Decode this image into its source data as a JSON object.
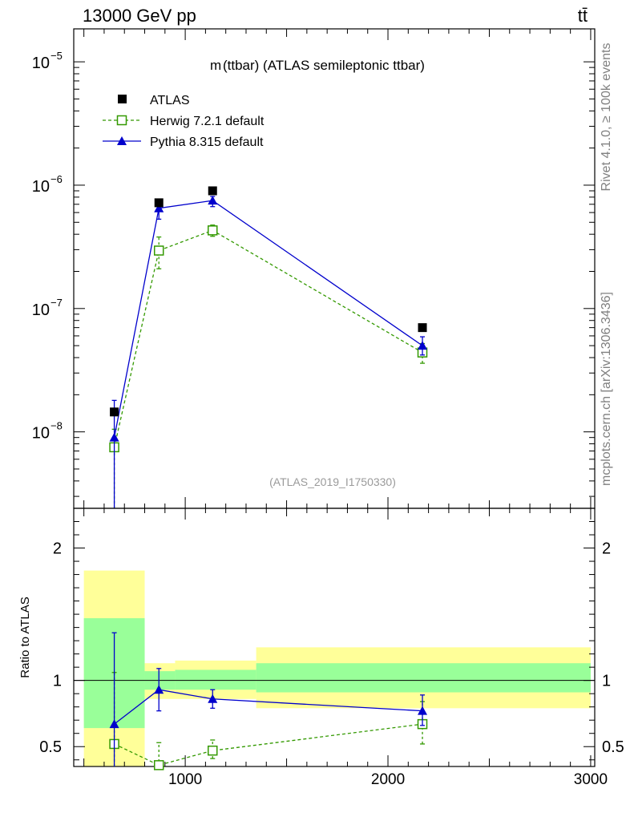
{
  "header": {
    "left": "13000 GeV pp",
    "right": "tt̄"
  },
  "side_labels": {
    "top": "Rivet 4.1.0, ≥ 100k events",
    "bottom": "mcplots.cern.ch [arXiv:1306.3436]"
  },
  "reference": "(ATLAS_2019_I1750330)",
  "colors": {
    "atlas": "#000000",
    "herwig": "#339900",
    "pythia": "#0000cc",
    "band_inner": "#99ff99",
    "band_outer": "#ffff99"
  },
  "chart_data": [
    {
      "type": "scatter",
      "panel": "main",
      "title": "m(ttbar) (ATLAS semileptonic ttbar)",
      "title_prefix": "m",
      "title_suffix": "(ttbar) (ATLAS semileptonic ttbar)",
      "yscale": "log",
      "ylim": [
        2.4e-09,
        1.85e-05
      ],
      "xlim": [
        450,
        3020
      ],
      "y_ticks": [
        {
          "value": 1e-08,
          "base": "10",
          "exp": "−8"
        },
        {
          "value": 1e-07,
          "base": "10",
          "exp": "−7"
        },
        {
          "value": 1e-06,
          "base": "10",
          "exp": "−6"
        },
        {
          "value": 1e-05,
          "base": "10",
          "exp": "−5"
        }
      ],
      "legend_position": "top-left",
      "series": [
        {
          "name": "ATLAS",
          "marker": "filled-square",
          "x": [
            650,
            870,
            1135,
            2170
          ],
          "y": [
            1.45e-08,
            7.2e-07,
            9e-07,
            7e-08
          ],
          "xerr": [
            [
              500,
              800
            ],
            [
              800,
              950
            ],
            [
              950,
              1350
            ],
            [
              1350,
              3000
            ]
          ]
        },
        {
          "name": "Herwig 7.2.1 default",
          "marker": "open-square",
          "line": "dashed",
          "x": [
            650,
            870,
            1135,
            2170
          ],
          "y": [
            7.5e-09,
            2.95e-07,
            4.3e-07,
            4.4e-08
          ],
          "yerr_low": [
            2.4e-09,
            2.1e-07,
            3.85e-07,
            3.6e-08
          ],
          "yerr_high": [
            1.05e-08,
            3.8e-07,
            4.75e-07,
            5.2e-08
          ]
        },
        {
          "name": "Pythia 8.315 default",
          "marker": "filled-triangle",
          "line": "solid",
          "x": [
            650,
            870,
            1135,
            2170
          ],
          "y": [
            9e-09,
            6.5e-07,
            7.5e-07,
            5e-08
          ],
          "yerr_low": [
            2.4e-09,
            5.3e-07,
            6.7e-07,
            4.2e-08
          ],
          "yerr_high": [
            1.8e-08,
            7.7e-07,
            8.1e-07,
            5.9e-08
          ]
        }
      ]
    },
    {
      "type": "scatter",
      "panel": "ratio",
      "ylabel": "Ratio to ATLAS",
      "ylim": [
        0.35,
        2.3
      ],
      "xlim": [
        450,
        3020
      ],
      "x_ticks": [
        1000,
        2000,
        3000
      ],
      "y_ticks": [
        0.5,
        1,
        2
      ],
      "bands": [
        {
          "xmin": 500,
          "xmax": 800,
          "inner": [
            0.64,
            1.47
          ],
          "outer": [
            0.35,
            1.83
          ]
        },
        {
          "xmin": 800,
          "xmax": 950,
          "inner": [
            0.93,
            1.07
          ],
          "outer": [
            0.86,
            1.13
          ]
        },
        {
          "xmin": 950,
          "xmax": 1350,
          "inner": [
            0.93,
            1.08
          ],
          "outer": [
            0.86,
            1.15
          ]
        },
        {
          "xmin": 1350,
          "xmax": 3000,
          "inner": [
            0.91,
            1.13
          ],
          "outer": [
            0.79,
            1.25
          ]
        }
      ],
      "series": [
        {
          "name": "Herwig 7.2.1 default",
          "marker": "open-square",
          "line": "dashed",
          "x": [
            650,
            870,
            1135,
            2170
          ],
          "y": [
            0.52,
            0.36,
            0.47,
            0.67
          ],
          "yerr_low": [
            0.35,
            0.35,
            0.41,
            0.52
          ],
          "yerr_high": [
            1.06,
            0.53,
            0.55,
            0.84
          ]
        },
        {
          "name": "Pythia 8.315 default",
          "marker": "filled-triangle",
          "line": "solid",
          "x": [
            650,
            870,
            1135,
            2170
          ],
          "y": [
            0.67,
            0.93,
            0.86,
            0.77
          ],
          "yerr_low": [
            0.35,
            0.77,
            0.79,
            0.66
          ],
          "yerr_high": [
            1.36,
            1.09,
            0.93,
            0.89
          ]
        }
      ]
    }
  ]
}
